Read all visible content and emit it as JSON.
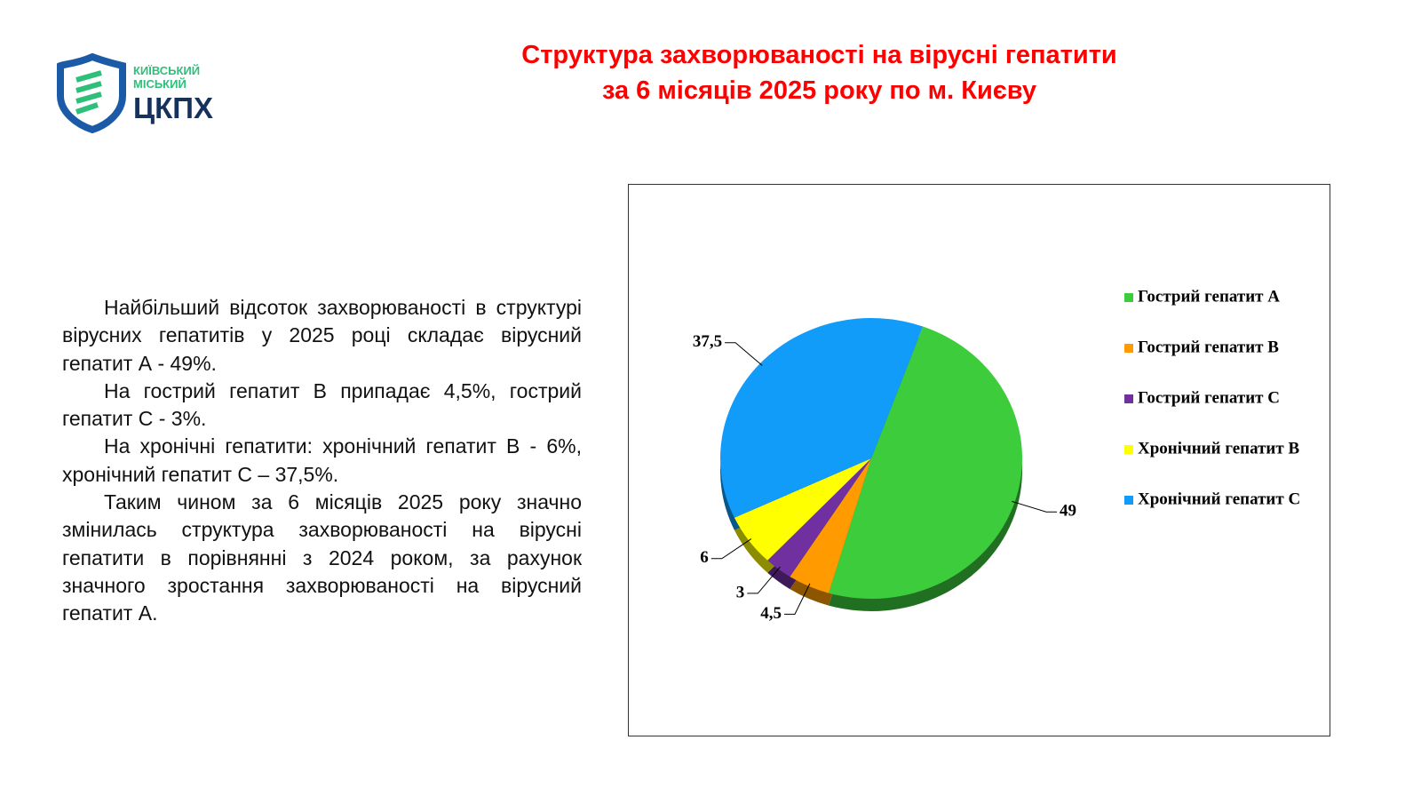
{
  "logo": {
    "line1": "КИЇВСЬКИЙ",
    "line2": "МІСЬКИЙ",
    "name": "ЦКПХ"
  },
  "paragraphs": [
    "Найбільший відсоток захворюваності в структурі вірусних гепатитів у 2025 році складає вірусний гепатит А - 49%.",
    "На гострий гепатит В припадає 4,5%, гострий гепатит С - 3%.",
    "На хронічні гепатити: хронічний гепатит В - 6%, хронічний гепатит С – 37,5%.",
    "Таким чином за 6 місяців 2025 року значно змінилась структура захворюваності на вірусні гепатити в порівнянні з 2024 роком, за рахунок значного зростання захворюваності на вірусний гепатит А."
  ],
  "chart_data": {
    "type": "pie",
    "title": [
      "Структура захворюваності на вірусні гепатити",
      "за 6 місяців 2025 року по м. Києву"
    ],
    "categories": [
      "Гострий гепатит А",
      "Гострий гепатит В",
      "Гострий гепатит С",
      "Хронічний гепатит В",
      "Хронічний гепатит С"
    ],
    "values": [
      49,
      4.5,
      3,
      6,
      37.5
    ],
    "value_labels": [
      "49",
      "4,5",
      "3",
      "6",
      "37,5"
    ],
    "colors": [
      "#3ccc3c",
      "#ff9a00",
      "#7030a0",
      "#ffff00",
      "#119cf9"
    ],
    "legend": "right"
  }
}
